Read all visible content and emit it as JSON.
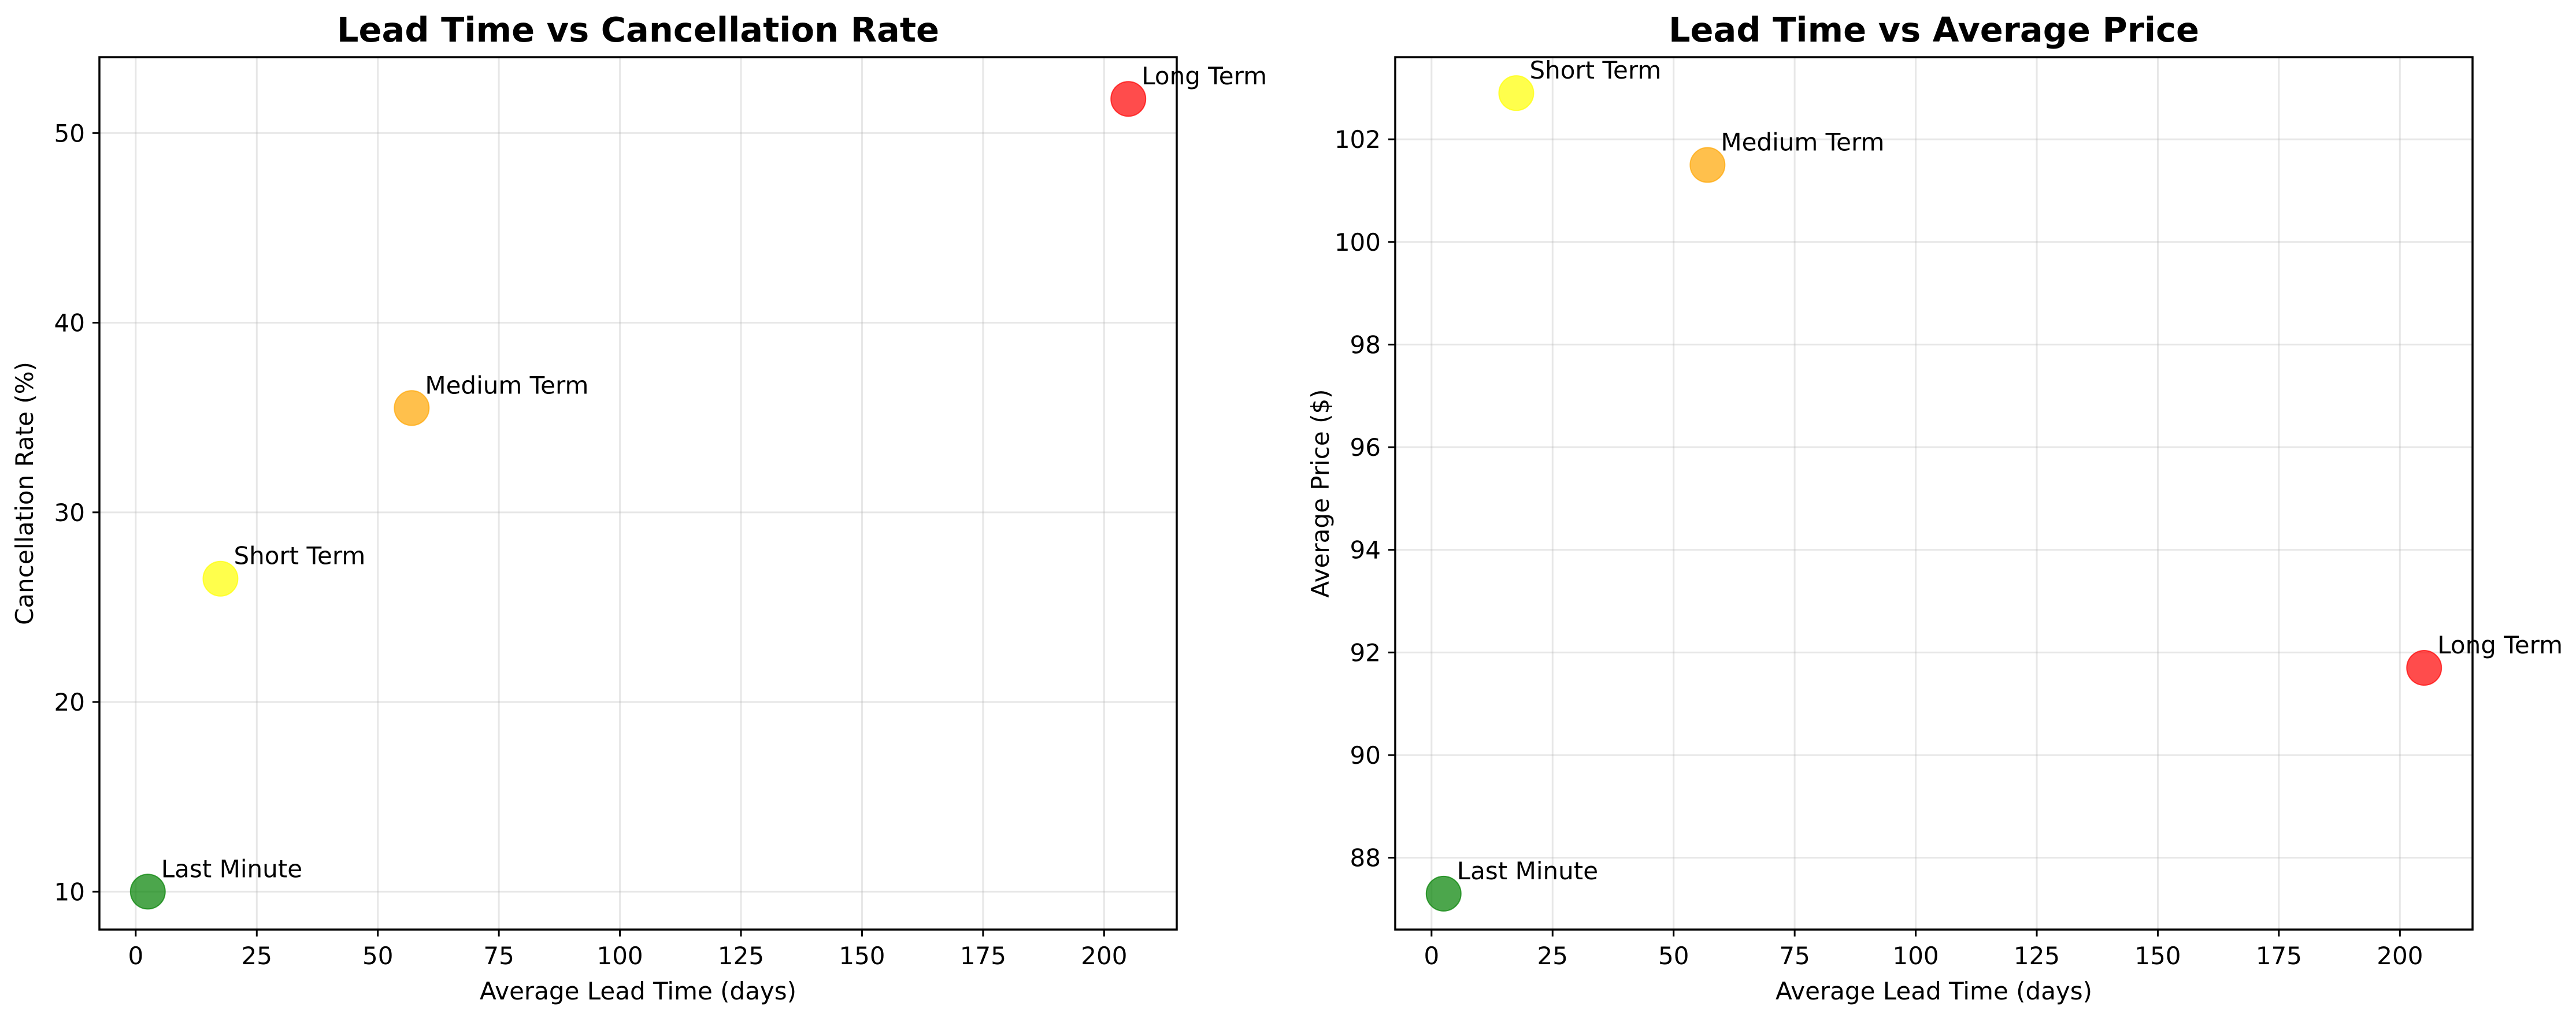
{
  "chart_data": [
    {
      "type": "scatter",
      "title": "Lead Time vs Cancellation Rate",
      "xlabel": "Average Lead Time (days)",
      "ylabel": "Cancellation Rate (%)",
      "xlim": [
        -7.5,
        215
      ],
      "ylim": [
        8,
        54
      ],
      "xticks": [
        0,
        25,
        50,
        75,
        100,
        125,
        150,
        175,
        200
      ],
      "yticks": [
        10,
        20,
        30,
        40,
        50
      ],
      "grid": true,
      "points": [
        {
          "label": "Last Minute",
          "x": 2.5,
          "y": 10.0,
          "color": "#008000"
        },
        {
          "label": "Short Term",
          "x": 17.5,
          "y": 26.5,
          "color": "#ffff00"
        },
        {
          "label": "Medium Term",
          "x": 57.0,
          "y": 35.5,
          "color": "#ffa500"
        },
        {
          "label": "Long Term",
          "x": 205.0,
          "y": 51.8,
          "color": "#ff0000"
        }
      ]
    },
    {
      "type": "scatter",
      "title": "Lead Time vs Average Price",
      "xlabel": "Average Lead Time (days)",
      "ylabel": "Average Price ($)",
      "xlim": [
        -7.5,
        215
      ],
      "ylim": [
        86.6,
        103.6
      ],
      "xticks": [
        0,
        25,
        50,
        75,
        100,
        125,
        150,
        175,
        200
      ],
      "yticks": [
        88,
        90,
        92,
        94,
        96,
        98,
        100,
        102
      ],
      "grid": true,
      "points": [
        {
          "label": "Last Minute",
          "x": 2.5,
          "y": 87.3,
          "color": "#008000"
        },
        {
          "label": "Short Term",
          "x": 17.5,
          "y": 102.9,
          "color": "#ffff00"
        },
        {
          "label": "Medium Term",
          "x": 57.0,
          "y": 101.5,
          "color": "#ffa500"
        },
        {
          "label": "Long Term",
          "x": 205.0,
          "y": 91.7,
          "color": "#ff0000"
        }
      ]
    }
  ]
}
